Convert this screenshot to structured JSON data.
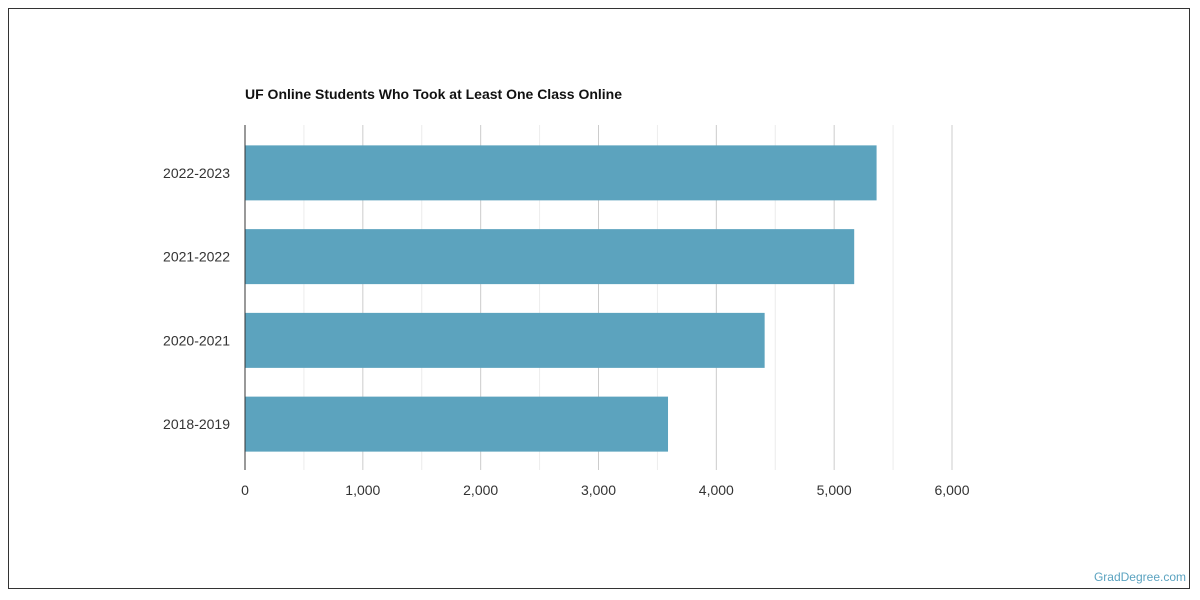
{
  "chart_data": {
    "type": "bar",
    "orientation": "horizontal",
    "title": "UF Online Students Who Took at Least One Class Online",
    "categories": [
      "2022-2023",
      "2021-2022",
      "2020-2021",
      "2018-2019"
    ],
    "values": [
      5360,
      5170,
      4410,
      3590
    ],
    "xlim": [
      0,
      6000
    ],
    "xticks": [
      0,
      1000,
      2000,
      3000,
      4000,
      5000,
      6000
    ],
    "xtick_labels": [
      "0",
      "1,000",
      "2,000",
      "3,000",
      "4,000",
      "5,000",
      "6,000"
    ],
    "grid": true,
    "bar_color": "#5ca3be"
  },
  "watermark": "GradDegree.com"
}
